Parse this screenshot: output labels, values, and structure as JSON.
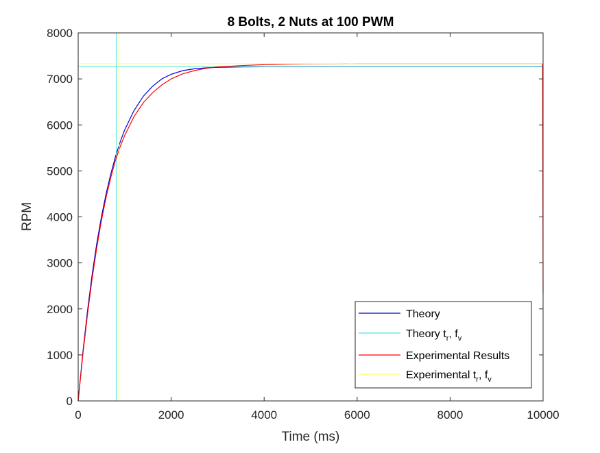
{
  "chart_data": {
    "type": "line",
    "title": "8 Bolts, 2 Nuts at 100 PWM",
    "xlabel": "Time (ms)",
    "ylabel": "RPM",
    "xlim": [
      0,
      10000
    ],
    "ylim": [
      0,
      8000
    ],
    "xticks": [
      0,
      2000,
      4000,
      6000,
      8000,
      10000
    ],
    "yticks": [
      0,
      1000,
      2000,
      3000,
      4000,
      5000,
      6000,
      7000,
      8000
    ],
    "xtick_labels": [
      "0",
      "2000",
      "4000",
      "6000",
      "8000",
      "10000"
    ],
    "ytick_labels": [
      "0",
      "1000",
      "2000",
      "3000",
      "4000",
      "5000",
      "6000",
      "7000",
      "8000"
    ],
    "grid": false,
    "legend_position": "bottom-right",
    "series": [
      {
        "name": "Theory",
        "color": "#0000cc",
        "x": [
          0,
          100,
          200,
          300,
          400,
          500,
          600,
          700,
          800,
          900,
          1000,
          1200,
          1400,
          1600,
          1800,
          2000,
          2250,
          2500,
          2750,
          3000,
          3500,
          4000,
          4500,
          5000,
          6000,
          7000,
          8000,
          9000,
          9990
        ],
        "y": [
          0,
          1050,
          1960,
          2740,
          3420,
          4000,
          4500,
          4930,
          5300,
          5620,
          5890,
          6310,
          6620,
          6840,
          7000,
          7100,
          7180,
          7220,
          7240,
          7250,
          7260,
          7265,
          7267,
          7268,
          7268,
          7268,
          7268,
          7268,
          7268
        ]
      },
      {
        "name": "Theory t_r, f_v",
        "color": "#4fe3e3",
        "x_line": 820,
        "y_line": 7268
      },
      {
        "name": "Experimental Results",
        "color": "#ff0000",
        "x": [
          0,
          100,
          200,
          300,
          400,
          500,
          600,
          700,
          800,
          900,
          1000,
          1200,
          1400,
          1600,
          1800,
          2000,
          2250,
          2500,
          2750,
          3000,
          3500,
          4000,
          4500,
          5000,
          5500,
          6000,
          7000,
          8000,
          9000,
          9990,
          10000
        ],
        "y": [
          0,
          1000,
          1880,
          2650,
          3330,
          3920,
          4420,
          4850,
          5220,
          5520,
          5770,
          6180,
          6480,
          6700,
          6870,
          7000,
          7110,
          7180,
          7230,
          7260,
          7290,
          7310,
          7320,
          7325,
          7328,
          7330,
          7330,
          7330,
          7330,
          7330,
          2350
        ]
      },
      {
        "name": "Experimental t_r, f_v",
        "color": "#ffff66",
        "x_line": 880,
        "y_line": 7330
      }
    ],
    "legend": [
      {
        "text": "Theory",
        "sub1": "",
        "mid": "",
        "sub2": ""
      },
      {
        "text": "Theory t",
        "sub1": "r",
        "mid": ", f",
        "sub2": "v"
      },
      {
        "text": "Experimental Results",
        "sub1": "",
        "mid": "",
        "sub2": ""
      },
      {
        "text": "Experimental t",
        "sub1": "r",
        "mid": ", f",
        "sub2": "v"
      }
    ]
  }
}
